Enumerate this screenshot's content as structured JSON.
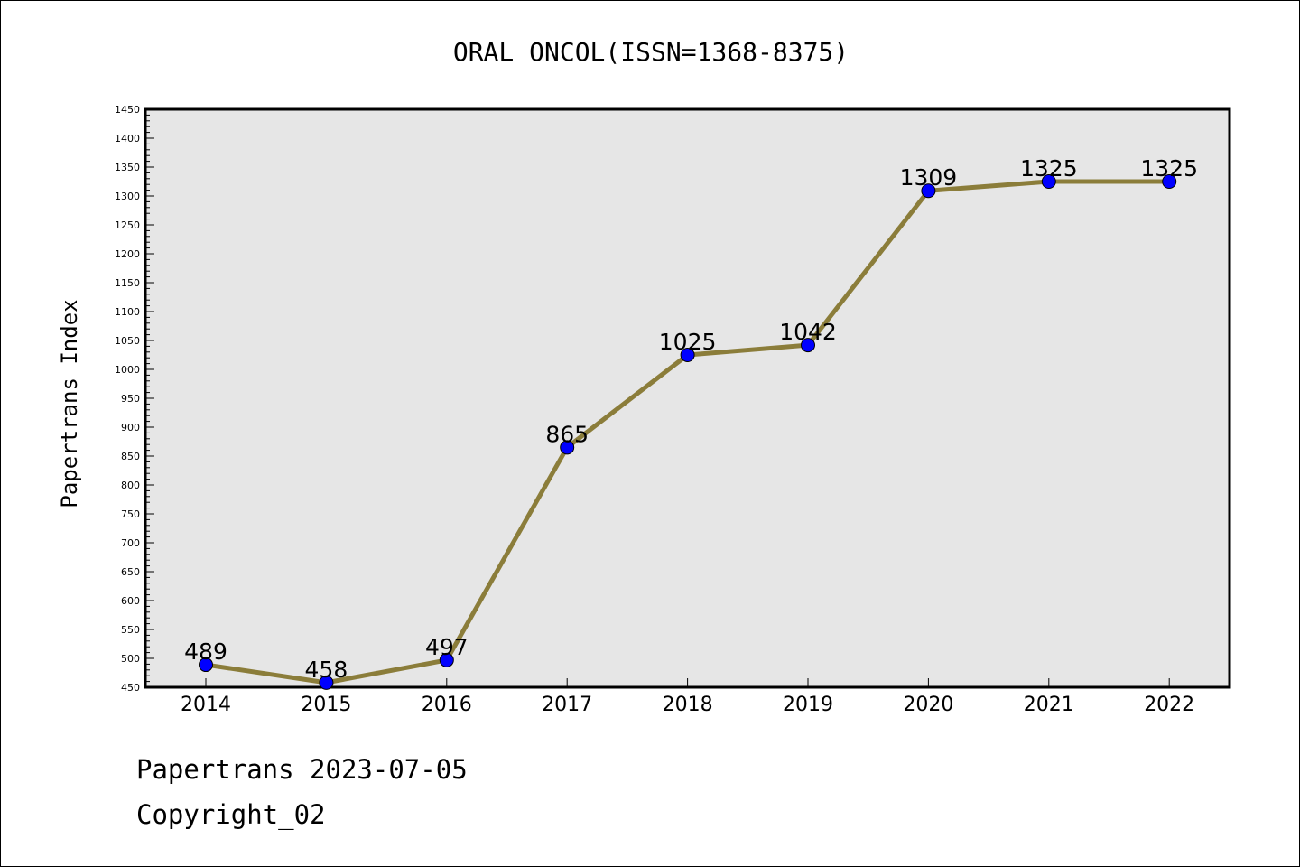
{
  "chart_data": {
    "type": "line",
    "title": "ORAL ONCOL(ISSN=1368-8375)",
    "xlabel": "",
    "ylabel": "Papertrans Index",
    "categories": [
      "2014",
      "2015",
      "2016",
      "2017",
      "2018",
      "2019",
      "2020",
      "2021",
      "2022"
    ],
    "series": [
      {
        "values": [
          489,
          458,
          497,
          865,
          1025,
          1042,
          1309,
          1325,
          1325
        ]
      }
    ],
    "ylim": [
      450,
      1450
    ],
    "yticks": [
      450,
      500,
      550,
      600,
      650,
      700,
      750,
      800,
      850,
      900,
      950,
      1000,
      1050,
      1100,
      1150,
      1200,
      1250,
      1300,
      1350,
      1400,
      1450
    ],
    "grid": false,
    "colors": {
      "line": "#8B7D3A",
      "marker": "#0000FF",
      "plot_background": "#E6E6E6"
    }
  },
  "footer": {
    "line1": "Papertrans 2023-07-05",
    "line2": "Copyright_02"
  }
}
